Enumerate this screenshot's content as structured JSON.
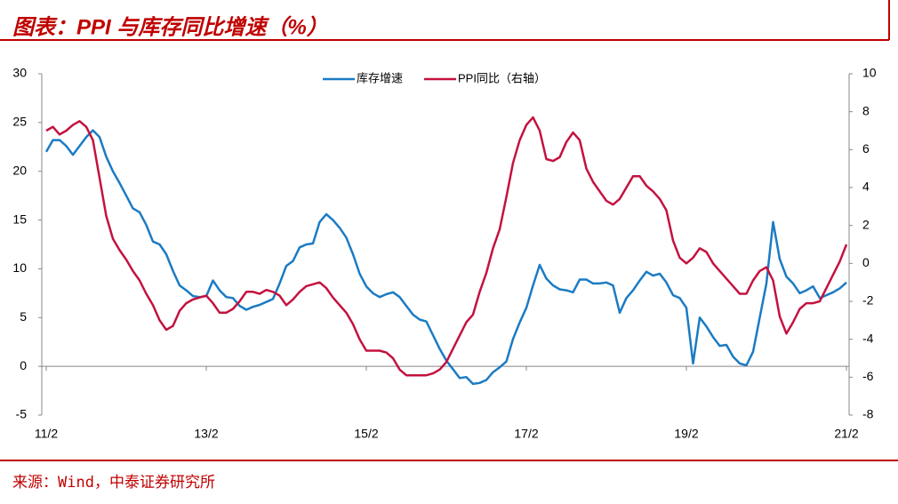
{
  "chart_data": {
    "type": "line",
    "title": "图表：PPI 与库存同比增速（%）",
    "source": "来源：Wind，中泰证券研究所",
    "categories": [
      "11/2",
      null,
      null,
      null,
      null,
      null,
      null,
      null,
      null,
      null,
      null,
      null,
      null,
      null,
      null,
      null,
      null,
      null,
      null,
      null,
      null,
      null,
      null,
      null,
      "13/2",
      null,
      null,
      null,
      null,
      null,
      null,
      null,
      null,
      null,
      null,
      null,
      null,
      null,
      null,
      null,
      null,
      null,
      null,
      null,
      null,
      null,
      null,
      null,
      "15/2",
      null,
      null,
      null,
      null,
      null,
      null,
      null,
      null,
      null,
      null,
      null,
      null,
      null,
      null,
      null,
      null,
      null,
      null,
      null,
      null,
      null,
      null,
      null,
      "17/2",
      null,
      null,
      null,
      null,
      null,
      null,
      null,
      null,
      null,
      null,
      null,
      null,
      null,
      null,
      null,
      null,
      null,
      null,
      null,
      null,
      null,
      null,
      null,
      "19/2",
      null,
      null,
      null,
      null,
      null,
      null,
      null,
      null,
      null,
      null,
      null,
      null,
      null,
      null,
      null,
      null,
      null,
      null,
      null,
      null,
      null,
      null,
      null,
      "21/2"
    ],
    "series": [
      {
        "name": "库存增速",
        "color": "#1b7bc4",
        "axis": "y",
        "values": [
          22,
          23.2,
          23.2,
          22.6,
          21.7,
          22.6,
          23.5,
          24.2,
          23.5,
          21.5,
          20,
          18.8,
          17.5,
          16.2,
          15.8,
          14.5,
          12.8,
          12.5,
          11.5,
          9.8,
          8.3,
          7.8,
          7.2,
          7.1,
          7.2,
          8.8,
          7.8,
          7.1,
          7,
          6.2,
          5.8,
          6.1,
          6.3,
          6.6,
          6.9,
          8.5,
          10.3,
          10.8,
          12.2,
          12.5,
          12.6,
          14.8,
          15.6,
          15,
          14.2,
          13.2,
          11.5,
          9.5,
          8.2,
          7.5,
          7.1,
          7.4,
          7.6,
          7.1,
          6.2,
          5.3,
          4.8,
          4.6,
          3.2,
          1.8,
          0.6,
          -0.3,
          -1.2,
          -1.1,
          -1.8,
          -1.7,
          -1.4,
          -0.6,
          -0.1,
          0.5,
          2.8,
          4.5,
          6,
          8.3,
          10.4,
          9,
          8.3,
          7.9,
          7.8,
          7.6,
          8.9,
          8.9,
          8.5,
          8.5,
          8.6,
          8.3,
          5.5,
          7,
          7.8,
          8.8,
          9.7,
          9.3,
          9.5,
          8.6,
          7.3,
          7,
          6,
          0.3,
          5,
          4.1,
          3,
          2.1,
          2.2,
          1,
          0.3,
          0.1,
          1.5,
          5,
          8.5,
          14.8,
          11,
          9.2,
          8.5,
          7.5,
          7.8,
          8.2,
          7,
          7.3,
          7.6,
          8,
          8.6
        ]
      },
      {
        "name": "PPI同比（右轴）",
        "color": "#c3123f",
        "axis": "y2",
        "values": [
          7,
          7.2,
          6.8,
          7,
          7.3,
          7.5,
          7.2,
          6.5,
          4.5,
          2.5,
          1.3,
          0.7,
          0.2,
          -0.4,
          -0.9,
          -1.6,
          -2.2,
          -3,
          -3.5,
          -3.3,
          -2.5,
          -2.1,
          -1.9,
          -1.8,
          -1.7,
          -2.1,
          -2.6,
          -2.6,
          -2.4,
          -2,
          -1.5,
          -1.5,
          -1.6,
          -1.4,
          -1.5,
          -1.7,
          -2.2,
          -1.9,
          -1.5,
          -1.2,
          -1.1,
          -1,
          -1.3,
          -1.8,
          -2.2,
          -2.6,
          -3.2,
          -4,
          -4.6,
          -4.6,
          -4.6,
          -4.7,
          -5,
          -5.6,
          -5.9,
          -5.9,
          -5.9,
          -5.9,
          -5.8,
          -5.6,
          -5.2,
          -4.5,
          -3.8,
          -3.1,
          -2.7,
          -1.5,
          -0.5,
          0.8,
          1.8,
          3.5,
          5.3,
          6.5,
          7.3,
          7.7,
          7,
          5.5,
          5.4,
          5.6,
          6.4,
          6.9,
          6.5,
          5,
          4.3,
          3.8,
          3.3,
          3.1,
          3.4,
          4,
          4.6,
          4.6,
          4.1,
          3.8,
          3.4,
          2.8,
          1.2,
          0.3,
          0,
          0.3,
          0.8,
          0.6,
          0,
          -0.4,
          -0.8,
          -1.2,
          -1.6,
          -1.6,
          -0.9,
          -0.4,
          -0.2,
          -0.9,
          -2.8,
          -3.7,
          -3.1,
          -2.4,
          -2.1,
          -2.1,
          -2,
          -1.3,
          -0.6,
          0.1,
          1
        ]
      }
    ],
    "ylim": [
      -5,
      30
    ],
    "yticks": [
      -5,
      0,
      5,
      10,
      15,
      20,
      25,
      30
    ],
    "y2lim": [
      -8,
      10
    ],
    "y2ticks": [
      -8,
      -6,
      -4,
      -2,
      0,
      2,
      4,
      6,
      8,
      10
    ],
    "legend": "top"
  }
}
